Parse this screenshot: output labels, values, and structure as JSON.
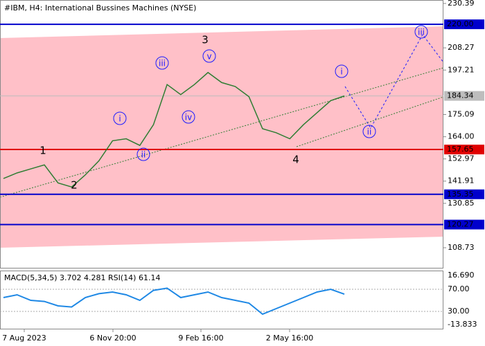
{
  "chart_data": {
    "type": "line",
    "title": "#IBM, H4:  International Bussines Machines (NYSE)",
    "series": [
      {
        "name": "IBM",
        "color": "#2e7d32",
        "values": [
          143.2,
          146,
          148,
          150,
          141,
          139,
          145,
          152,
          162,
          163,
          159.7,
          170,
          190,
          185,
          190,
          196,
          191,
          189,
          184,
          168,
          166,
          163,
          170,
          176,
          182,
          184.34
        ]
      }
    ],
    "ylim": [
      98.4,
      232.1
    ],
    "yticks": [
      230.39,
      208.27,
      197.21,
      175.09,
      {
        "value": 164.0,
        "label": "164.00"
      },
      152.97,
      141.91,
      130.85,
      108.73
    ],
    "levels": [
      {
        "value": 220.0,
        "label": "220.00",
        "color": "#0000cc"
      },
      {
        "value": 184.34,
        "label": "184.34",
        "color": "#bdbdbd"
      },
      {
        "value": 157.65,
        "label": "157.65",
        "color": "#e00000"
      },
      {
        "value": 135.35,
        "label": "135.35",
        "color": "#0000cc"
      },
      {
        "value": 120.27,
        "label": "120.27",
        "color": "#0000cc"
      }
    ],
    "x_labels": [
      "7 Aug 2023",
      "6 Nov 20:00",
      "9 Feb 16:00",
      "2 May 16:00"
    ],
    "waves": [
      "1",
      "2",
      "3",
      "4",
      "i",
      "ii",
      "iii",
      "iv",
      "v",
      "i",
      "ii",
      "iii"
    ],
    "indicator": {
      "label": "MACD(5,34,5) 3.702 4.281 RSI(14) 61.14",
      "macd_ticks": [
        "16.690",
        "-13.833"
      ],
      "rsi_lim": [
        -1.25,
        102.5
      ],
      "rsi_ticks": [
        {
          "value": 70,
          "label": "70.00"
        },
        {
          "value": 30,
          "label": "30.00"
        }
      ],
      "rsi": [
        55,
        60,
        50,
        48,
        40,
        38,
        55,
        62,
        65,
        60,
        50,
        68,
        72,
        55,
        60,
        65,
        55,
        50,
        45,
        25,
        35,
        45,
        55,
        65,
        70,
        61.14
      ],
      "rsi_color": "#1e88e5"
    }
  }
}
